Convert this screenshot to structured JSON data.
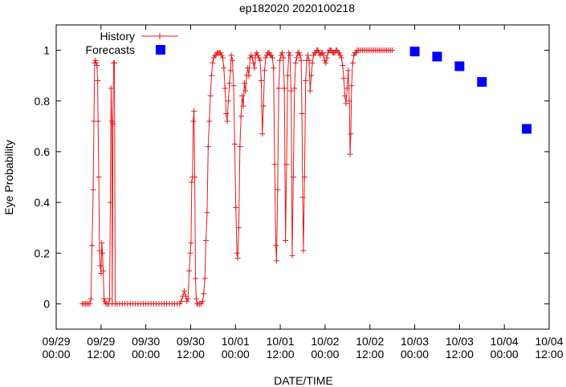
{
  "chart_data": {
    "type": "scatter",
    "title": "ep182020 2020100218",
    "xlabel": "DATE/TIME",
    "ylabel": "Eye Probability",
    "x_unit": "hours since 09/29 00:00",
    "xlim": [
      0,
      132
    ],
    "ylim": [
      -0.1,
      1.1
    ],
    "yticks": [
      0,
      0.2,
      0.4,
      0.6,
      0.8,
      1
    ],
    "ytick_labels": [
      "0",
      "0.2",
      "0.4",
      "0.6",
      "0.8",
      "1"
    ],
    "xticks": [
      {
        "x": 0,
        "line1": "09/29",
        "line2": "00:00"
      },
      {
        "x": 12,
        "line1": "09/29",
        "line2": "12:00"
      },
      {
        "x": 24,
        "line1": "09/30",
        "line2": "00:00"
      },
      {
        "x": 36,
        "line1": "09/30",
        "line2": "12:00"
      },
      {
        "x": 48,
        "line1": "10/01",
        "line2": "00:00"
      },
      {
        "x": 60,
        "line1": "10/01",
        "line2": "12:00"
      },
      {
        "x": 72,
        "line1": "10/02",
        "line2": "00:00"
      },
      {
        "x": 84,
        "line1": "10/02",
        "line2": "12:00"
      },
      {
        "x": 96,
        "line1": "10/03",
        "line2": "00:00"
      },
      {
        "x": 108,
        "line1": "10/03",
        "line2": "12:00"
      },
      {
        "x": 120,
        "line1": "10/04",
        "line2": "00:00"
      },
      {
        "x": 132,
        "line1": "10/04",
        "line2": "12:00"
      }
    ],
    "grid": false,
    "legend_position": "top-left",
    "series": [
      {
        "name": "History",
        "style": "line+cross",
        "color": "#e41a1c",
        "points": [
          [
            7.0,
            0.0
          ],
          [
            7.4,
            0.0
          ],
          [
            7.8,
            0.0
          ],
          [
            8.2,
            0.0
          ],
          [
            8.6,
            0.0
          ],
          [
            9.0,
            0.0
          ],
          [
            9.3,
            0.02
          ],
          [
            9.6,
            0.23
          ],
          [
            9.9,
            0.45
          ],
          [
            10.1,
            0.72
          ],
          [
            10.3,
            0.95
          ],
          [
            10.5,
            0.96
          ],
          [
            10.7,
            0.95
          ],
          [
            10.9,
            0.94
          ],
          [
            11.1,
            0.88
          ],
          [
            11.2,
            0.72
          ],
          [
            11.4,
            0.5
          ],
          [
            11.6,
            0.21
          ],
          [
            11.8,
            0.15
          ],
          [
            12.0,
            0.12
          ],
          [
            12.2,
            0.24
          ],
          [
            12.4,
            0.2
          ],
          [
            12.6,
            0.13
          ],
          [
            12.8,
            0.02
          ],
          [
            13.0,
            0.01
          ],
          [
            13.3,
            0.0
          ],
          [
            13.7,
            0.0
          ],
          [
            14.1,
            0.0
          ],
          [
            14.3,
            0.02
          ],
          [
            14.5,
            0.4
          ],
          [
            14.7,
            0.85
          ],
          [
            14.9,
            0.72
          ],
          [
            15.0,
            0.0
          ],
          [
            15.2,
            0.71
          ],
          [
            15.4,
            0.95
          ],
          [
            15.6,
            0.95
          ],
          [
            15.8,
            0.0
          ],
          [
            16.3,
            0.0
          ],
          [
            17,
            0.0
          ],
          [
            17.7,
            0.0
          ],
          [
            18.4,
            0.0
          ],
          [
            19.1,
            0.0
          ],
          [
            19.8,
            0.0
          ],
          [
            20.5,
            0.0
          ],
          [
            21.2,
            0.0
          ],
          [
            21.9,
            0.0
          ],
          [
            22.6,
            0.0
          ],
          [
            23.3,
            0.0
          ],
          [
            24.0,
            0.0
          ],
          [
            24.7,
            0.0
          ],
          [
            25.4,
            0.0
          ],
          [
            26.1,
            0.0
          ],
          [
            26.8,
            0.0
          ],
          [
            27.5,
            0.0
          ],
          [
            28.2,
            0.0
          ],
          [
            28.9,
            0.0
          ],
          [
            29.6,
            0.0
          ],
          [
            30.3,
            0.0
          ],
          [
            31.0,
            0.0
          ],
          [
            31.7,
            0.0
          ],
          [
            32.4,
            0.0
          ],
          [
            33.1,
            0.0
          ],
          [
            33.5,
            0.01
          ],
          [
            33.9,
            0.03
          ],
          [
            34.3,
            0.05
          ],
          [
            34.7,
            0.03
          ],
          [
            35.0,
            0.01
          ],
          [
            35.3,
            0.02
          ],
          [
            35.6,
            0.13
          ],
          [
            35.9,
            0.2
          ],
          [
            36.1,
            0.24
          ],
          [
            36.3,
            0.48
          ],
          [
            36.5,
            0.5
          ],
          [
            36.7,
            0.72
          ],
          [
            36.9,
            0.76
          ],
          [
            37.1,
            0.5
          ],
          [
            37.3,
            0.1
          ],
          [
            37.5,
            0.02
          ],
          [
            37.7,
            0.0
          ],
          [
            38.0,
            0.0
          ],
          [
            38.4,
            0.0
          ],
          [
            38.8,
            0.0
          ],
          [
            39.2,
            0.01
          ],
          [
            39.5,
            0.04
          ],
          [
            39.8,
            0.1
          ],
          [
            40.1,
            0.25
          ],
          [
            40.4,
            0.36
          ],
          [
            40.7,
            0.62
          ],
          [
            41.0,
            0.72
          ],
          [
            41.3,
            0.82
          ],
          [
            41.6,
            0.9
          ],
          [
            41.9,
            0.95
          ],
          [
            42.2,
            0.97
          ],
          [
            42.5,
            0.98
          ],
          [
            42.8,
            0.98
          ],
          [
            43.1,
            0.99
          ],
          [
            43.4,
            0.99
          ],
          [
            43.7,
            0.99
          ],
          [
            44.0,
            0.99
          ],
          [
            44.3,
            0.98
          ],
          [
            44.6,
            0.97
          ],
          [
            44.9,
            0.93
          ],
          [
            45.2,
            0.85
          ],
          [
            45.5,
            0.75
          ],
          [
            45.8,
            0.72
          ],
          [
            46.1,
            0.8
          ],
          [
            46.4,
            0.87
          ],
          [
            46.7,
            0.92
          ],
          [
            46.9,
            0.98
          ],
          [
            47.2,
            0.96
          ],
          [
            47.5,
            0.86
          ],
          [
            47.8,
            0.63
          ],
          [
            48.1,
            0.38
          ],
          [
            48.4,
            0.2
          ],
          [
            48.6,
            0.18
          ],
          [
            48.9,
            0.3
          ],
          [
            49.2,
            0.62
          ],
          [
            49.5,
            0.74
          ],
          [
            49.8,
            0.82
          ],
          [
            50.1,
            0.78
          ],
          [
            50.4,
            0.87
          ],
          [
            50.7,
            0.84
          ],
          [
            51.0,
            0.9
          ],
          [
            51.3,
            0.93
          ],
          [
            51.6,
            0.9
          ],
          [
            51.9,
            0.97
          ],
          [
            52.2,
            0.98
          ],
          [
            52.5,
            0.97
          ],
          [
            52.8,
            0.95
          ],
          [
            53.1,
            0.93
          ],
          [
            53.4,
            0.98
          ],
          [
            53.7,
            0.99
          ],
          [
            54.0,
            0.98
          ],
          [
            54.3,
            0.97
          ],
          [
            54.6,
            0.96
          ],
          [
            54.9,
            0.88
          ],
          [
            55.2,
            0.67
          ],
          [
            55.5,
            0.78
          ],
          [
            55.8,
            0.92
          ],
          [
            56.1,
            0.97
          ],
          [
            56.4,
            0.98
          ],
          [
            56.7,
            0.99
          ],
          [
            57.0,
            0.99
          ],
          [
            57.3,
            0.98
          ],
          [
            57.6,
            0.98
          ],
          [
            57.9,
            0.97
          ],
          [
            58.2,
            0.93
          ],
          [
            58.5,
            0.55
          ],
          [
            58.8,
            0.23
          ],
          [
            59.0,
            0.17
          ],
          [
            59.3,
            0.45
          ],
          [
            59.6,
            0.85
          ],
          [
            59.9,
            0.96
          ],
          [
            60.2,
            0.98
          ],
          [
            60.5,
            0.99
          ],
          [
            60.8,
            0.97
          ],
          [
            61.1,
            0.85
          ],
          [
            61.4,
            0.25
          ],
          [
            61.7,
            0.55
          ],
          [
            62.0,
            0.9
          ],
          [
            62.3,
            0.99
          ],
          [
            62.6,
            0.98
          ],
          [
            62.9,
            0.84
          ],
          [
            63.2,
            0.19
          ],
          [
            63.5,
            0.5
          ],
          [
            63.8,
            0.85
          ],
          [
            64.1,
            0.95
          ],
          [
            64.4,
            0.97
          ],
          [
            64.7,
            0.99
          ],
          [
            65.0,
            0.99
          ],
          [
            65.3,
            0.98
          ],
          [
            65.6,
            0.96
          ],
          [
            65.8,
            0.75
          ],
          [
            66.0,
            0.42
          ],
          [
            66.2,
            0.21
          ],
          [
            66.5,
            0.5
          ],
          [
            66.8,
            0.88
          ],
          [
            67.1,
            0.96
          ],
          [
            67.4,
            0.98
          ],
          [
            67.7,
            0.96
          ],
          [
            68.0,
            0.84
          ],
          [
            68.3,
            0.9
          ],
          [
            68.6,
            0.95
          ],
          [
            68.9,
            0.98
          ],
          [
            69.2,
            0.99
          ],
          [
            69.5,
            0.99
          ],
          [
            69.8,
            1.0
          ],
          [
            70.1,
            1.0
          ],
          [
            70.4,
            0.99
          ],
          [
            70.7,
            0.98
          ],
          [
            71.0,
            0.99
          ],
          [
            71.3,
            0.99
          ],
          [
            71.6,
            0.98
          ],
          [
            71.9,
            0.96
          ],
          [
            72.2,
            0.95
          ],
          [
            72.5,
            0.97
          ],
          [
            72.8,
            0.99
          ],
          [
            73.1,
            1.0
          ],
          [
            73.4,
            1.0
          ],
          [
            73.7,
            1.0
          ],
          [
            74.0,
            0.99
          ],
          [
            74.3,
            0.99
          ],
          [
            74.6,
            0.99
          ],
          [
            74.9,
            1.0
          ],
          [
            75.2,
            1.0
          ],
          [
            75.5,
            0.99
          ],
          [
            75.8,
            0.99
          ],
          [
            76.1,
            0.98
          ],
          [
            76.4,
            0.97
          ],
          [
            76.7,
            0.94
          ],
          [
            77.0,
            0.89
          ],
          [
            77.3,
            0.82
          ],
          [
            77.6,
            0.79
          ],
          [
            77.9,
            0.85
          ],
          [
            78.2,
            0.92
          ],
          [
            78.5,
            0.8
          ],
          [
            78.7,
            0.59
          ],
          [
            78.9,
            0.67
          ],
          [
            79.1,
            0.86
          ],
          [
            79.4,
            0.95
          ],
          [
            79.7,
            0.98
          ],
          [
            80.0,
            0.99
          ],
          [
            80.3,
            0.99
          ],
          [
            80.6,
            1.0
          ],
          [
            81.0,
            1.0
          ],
          [
            81.5,
            1.0
          ],
          [
            82.0,
            1.0
          ],
          [
            82.5,
            1.0
          ],
          [
            83.0,
            1.0
          ],
          [
            83.5,
            1.0
          ],
          [
            84.0,
            1.0
          ],
          [
            84.5,
            1.0
          ],
          [
            85.0,
            1.0
          ],
          [
            85.5,
            1.0
          ],
          [
            86.0,
            1.0
          ],
          [
            86.5,
            1.0
          ],
          [
            87.0,
            1.0
          ],
          [
            87.5,
            1.0
          ],
          [
            88.0,
            1.0
          ],
          [
            88.5,
            1.0
          ],
          [
            89.0,
            1.0
          ],
          [
            89.5,
            1.0
          ],
          [
            90.0,
            1.0
          ]
        ]
      },
      {
        "name": "Forecasts",
        "style": "filled-square",
        "color": "#0000ff",
        "points": [
          [
            96,
            0.995
          ],
          [
            102,
            0.975
          ],
          [
            108,
            0.937
          ],
          [
            114,
            0.875
          ],
          [
            126,
            0.69
          ]
        ]
      }
    ]
  }
}
